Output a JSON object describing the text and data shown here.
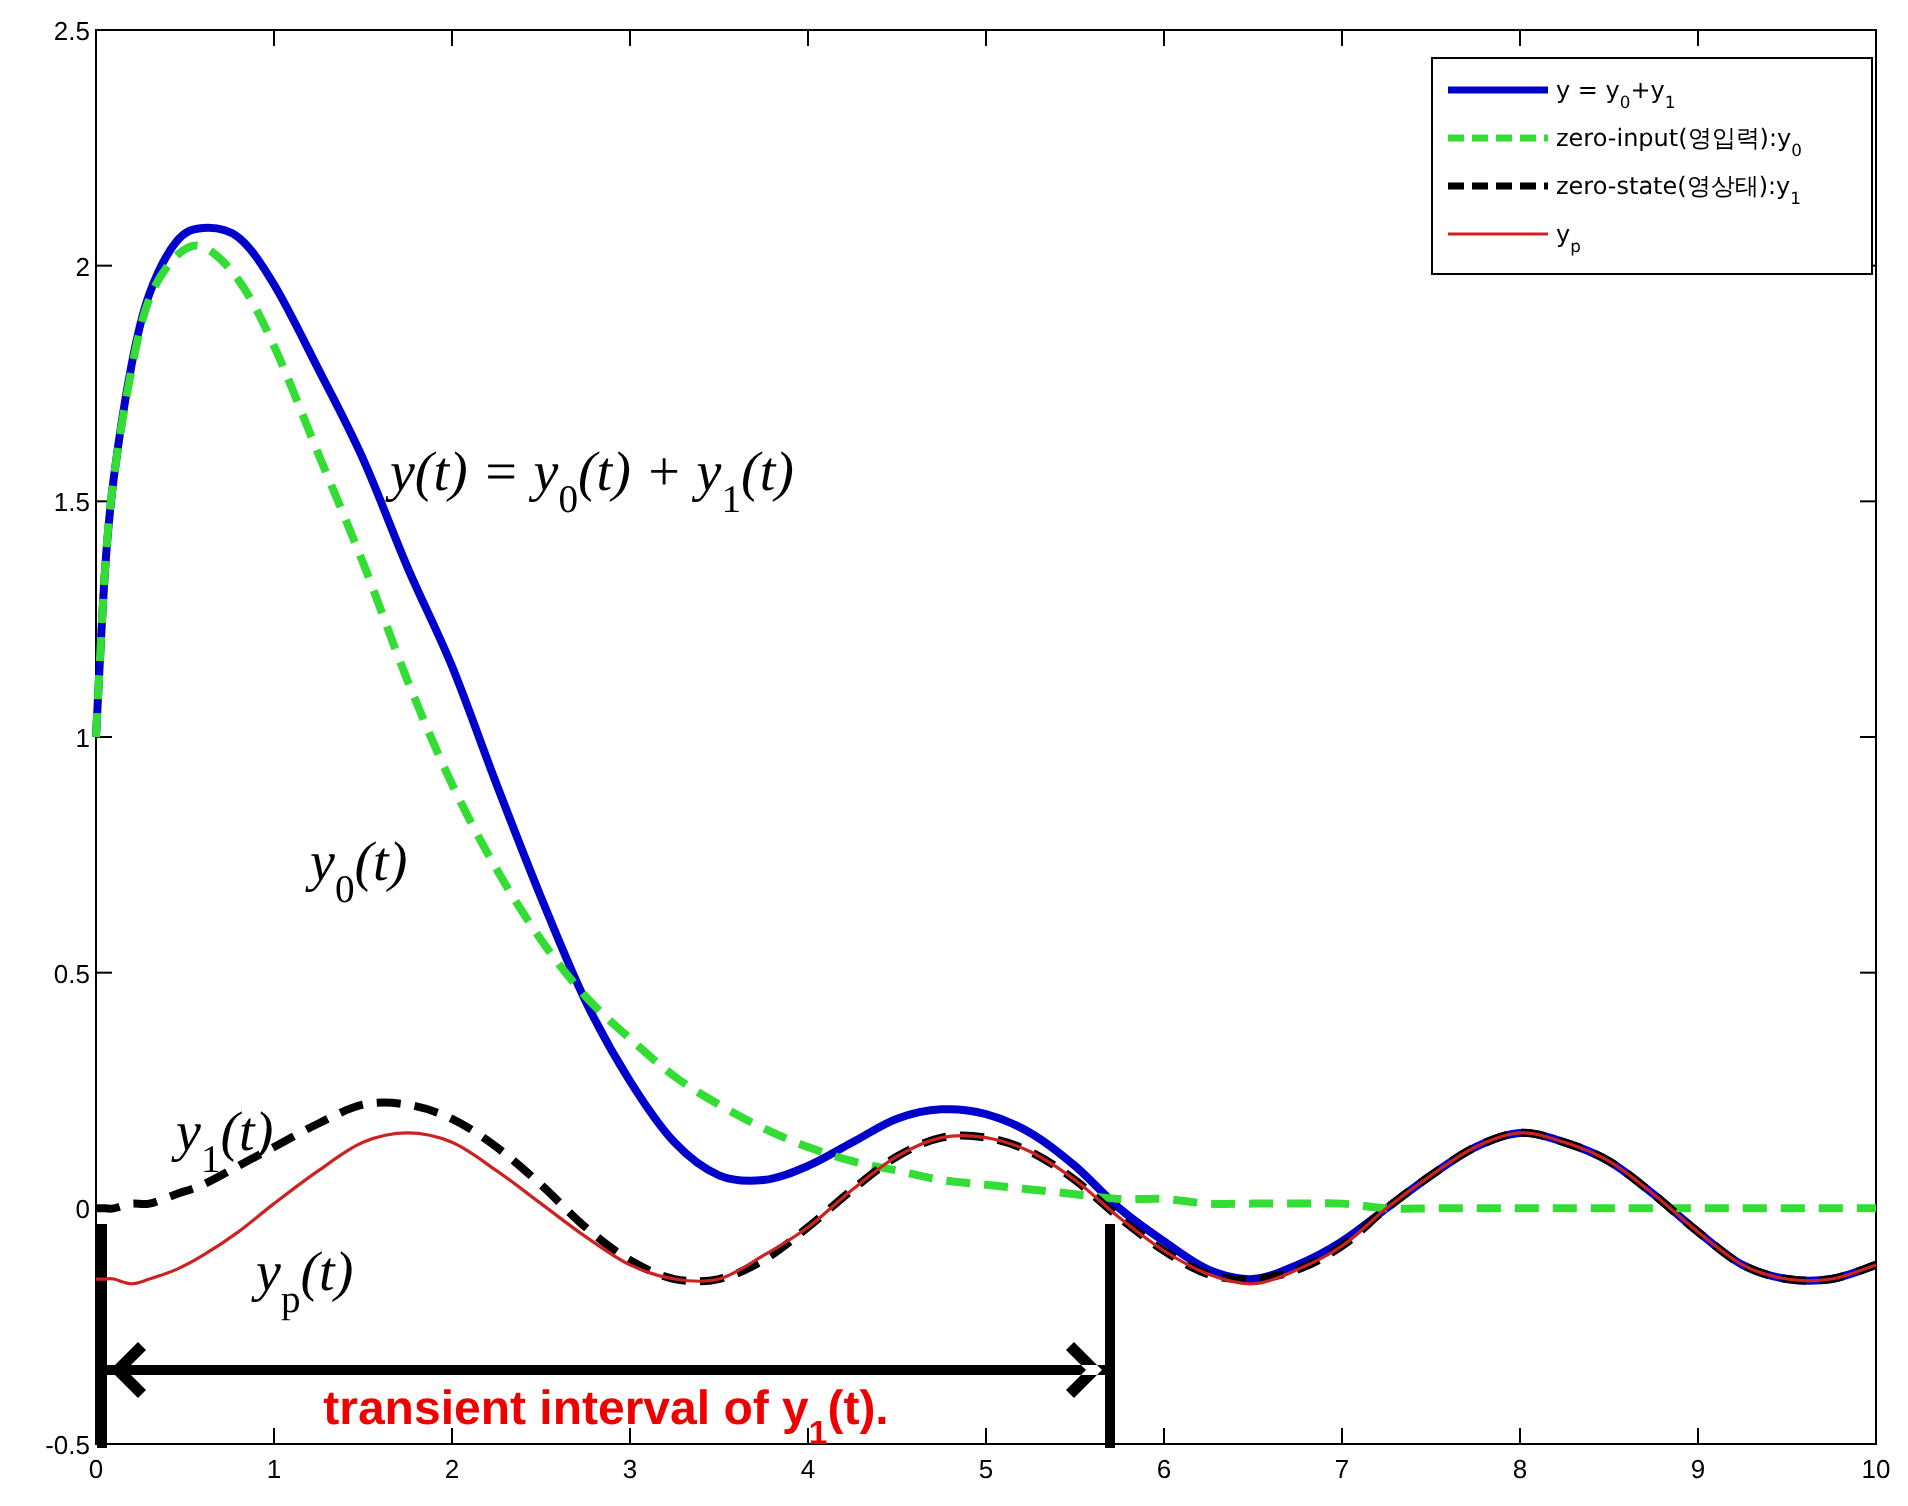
{
  "chart_data": {
    "type": "line",
    "x": [
      0,
      0.05,
      0.1,
      0.2,
      0.3,
      0.45,
      0.6,
      0.8,
      1.0,
      1.25,
      1.5,
      1.75,
      2.0,
      2.25,
      2.5,
      2.75,
      3.0,
      3.25,
      3.5,
      3.75,
      4.0,
      4.25,
      4.5,
      4.75,
      5.0,
      5.25,
      5.5,
      5.75,
      6.0,
      6.25,
      6.5,
      6.75,
      7.0,
      7.25,
      7.5,
      7.75,
      8.0,
      8.25,
      8.5,
      8.75,
      9.0,
      9.25,
      9.5,
      9.75,
      10
    ],
    "series": [
      {
        "name": "y = y$_{0}$+y$_{1}$",
        "color": "#0000cc",
        "line_style": "solid",
        "values": [
          1.0,
          1.35,
          1.55,
          1.79,
          1.94,
          2.05,
          2.08,
          2.06,
          1.96,
          1.78,
          1.59,
          1.36,
          1.15,
          0.9,
          0.66,
          0.44,
          0.27,
          0.14,
          0.07,
          0.06,
          0.09,
          0.14,
          0.19,
          0.21,
          0.2,
          0.16,
          0.09,
          0.0,
          -0.07,
          -0.13,
          -0.15,
          -0.12,
          -0.07,
          0.0,
          0.07,
          0.13,
          0.16,
          0.14,
          0.1,
          0.03,
          -0.05,
          -0.12,
          -0.15,
          -0.15,
          -0.12
        ]
      },
      {
        "name": "zero-input(영입력):y$_{0}$",
        "color": "#33dd33",
        "line_style": "dashed",
        "values": [
          1.0,
          1.35,
          1.55,
          1.78,
          1.93,
          2.02,
          2.04,
          1.97,
          1.83,
          1.6,
          1.37,
          1.12,
          0.9,
          0.72,
          0.57,
          0.45,
          0.36,
          0.28,
          0.22,
          0.17,
          0.13,
          0.1,
          0.08,
          0.06,
          0.05,
          0.04,
          0.03,
          0.02,
          0.02,
          0.01,
          0.01,
          0.01,
          0.01,
          0.0,
          0.0,
          0.0,
          0.0,
          0.0,
          0.0,
          0.0,
          0.0,
          0.0,
          0.0,
          0.0,
          0.0
        ]
      },
      {
        "name": "zero-state(영상태):y$_{1}$",
        "color": "#000000",
        "line_style": "dashed",
        "values": [
          0.0,
          0.0,
          0.0,
          0.01,
          0.01,
          0.03,
          0.05,
          0.09,
          0.13,
          0.18,
          0.22,
          0.22,
          0.19,
          0.13,
          0.05,
          -0.04,
          -0.11,
          -0.15,
          -0.15,
          -0.11,
          -0.04,
          0.04,
          0.11,
          0.15,
          0.15,
          0.12,
          0.06,
          -0.02,
          -0.09,
          -0.14,
          -0.15,
          -0.13,
          -0.08,
          0.0,
          0.07,
          0.13,
          0.16,
          0.14,
          0.1,
          0.03,
          -0.05,
          -0.12,
          -0.15,
          -0.15,
          -0.12
        ]
      },
      {
        "name": "y$_{p}$",
        "color": "#cc2222",
        "line_style": "solid",
        "values": [
          -0.15,
          -0.15,
          -0.15,
          -0.16,
          -0.15,
          -0.13,
          -0.1,
          -0.05,
          0.01,
          0.08,
          0.14,
          0.16,
          0.14,
          0.08,
          0.01,
          -0.06,
          -0.12,
          -0.15,
          -0.15,
          -0.1,
          -0.04,
          0.04,
          0.11,
          0.15,
          0.15,
          0.12,
          0.06,
          -0.02,
          -0.09,
          -0.14,
          -0.16,
          -0.13,
          -0.08,
          0.0,
          0.07,
          0.13,
          0.16,
          0.14,
          0.1,
          0.03,
          -0.05,
          -0.12,
          -0.15,
          -0.15,
          -0.12
        ]
      }
    ],
    "xlim": [
      0,
      10
    ],
    "xticks": [
      0,
      1,
      2,
      3,
      4,
      5,
      6,
      7,
      8,
      9,
      10
    ],
    "ylim": [
      -0.5,
      2.5
    ],
    "yticks": [
      -0.5,
      0,
      0.5,
      1,
      1.5,
      2,
      2.5
    ],
    "grid": false,
    "legend": "top right",
    "annotations": [
      "y(t) = y$_{0}$(t) + y$_{1}$(t)",
      "y$_{0}$(t)",
      "y$_{1}$(t)",
      "y$_{p}$(t)",
      "transient interval of y$_{1}$(t)."
    ]
  }
}
